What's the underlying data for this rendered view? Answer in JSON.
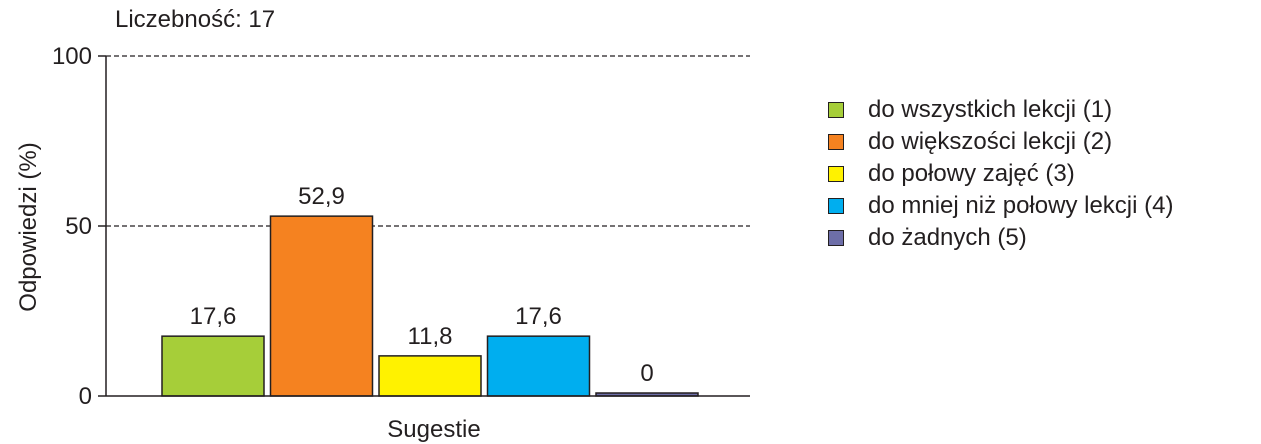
{
  "chart_data": {
    "type": "bar",
    "count_label": "Liczebność: 17",
    "xlabel": "Sugestie",
    "ylabel": "Odpowiedzi (%)",
    "ylim": [
      0,
      100
    ],
    "yticks": [
      0,
      50,
      100
    ],
    "ytick_labels": [
      "0",
      "50",
      "100"
    ],
    "gridlines_at": [
      50,
      100
    ],
    "legend_position": "right",
    "series": [
      {
        "name": "do wszystkich lekcji (1)",
        "value": 17.6,
        "label": "17,6",
        "color": "#a6ce39"
      },
      {
        "name": "do większości lekcji (2)",
        "value": 52.9,
        "label": "52,9",
        "color": "#f58220"
      },
      {
        "name": "do połowy zajęć (3)",
        "value": 11.8,
        "label": "11,8",
        "color": "#fff200"
      },
      {
        "name": "do mniej niż połowy lekcji (4)",
        "value": 17.6,
        "label": "17,6",
        "color": "#00aeef"
      },
      {
        "name": "do żadnych (5)",
        "value": 0,
        "label": "0",
        "color": "#6d6ea8"
      }
    ]
  }
}
